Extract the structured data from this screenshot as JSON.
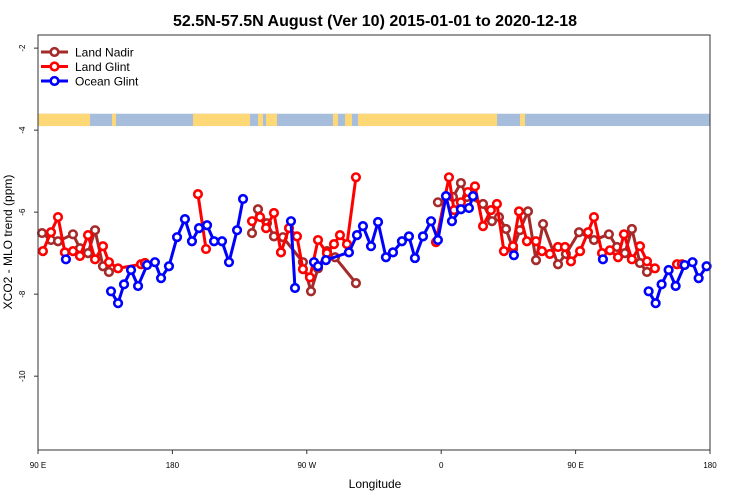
{
  "chart_data": {
    "type": "line",
    "title": "52.5N-57.5N August (Ver 10)   2015-01-01 to 2020-12-18",
    "xlabel": "Longitude",
    "ylabel": "XCO2 - MLO trend (ppm)",
    "xlim": [
      90,
      540
    ],
    "ylim": [
      -11.8,
      -1.68
    ],
    "x_ticks": [
      {
        "value": 90,
        "label": "90 E"
      },
      {
        "value": 180,
        "label": "180"
      },
      {
        "value": 270,
        "label": "90 W"
      },
      {
        "value": 360,
        "label": "0"
      },
      {
        "value": 450,
        "label": "90 E"
      },
      {
        "value": 540,
        "label": "180"
      }
    ],
    "y_ticks": [
      {
        "value": -2,
        "label": "-2"
      },
      {
        "value": -4,
        "label": "-4"
      },
      {
        "value": -6,
        "label": "-6"
      },
      {
        "value": -8,
        "label": "-8"
      },
      {
        "value": -10,
        "label": "-10"
      }
    ],
    "grid": false,
    "legend_position": "top-left",
    "series": [
      {
        "name": "Land Nadir",
        "color": "#a52a2a",
        "segments": [
          [
            [
              92.7,
              -6.51
            ],
            [
              98.7,
              -6.68
            ],
            [
              103.4,
              -6.71
            ],
            [
              113.4,
              -6.54
            ],
            [
              118.1,
              -6.88
            ],
            [
              123.5,
              -7.0
            ],
            [
              128.2,
              -6.44
            ],
            [
              133.5,
              -7.32
            ],
            [
              137.5,
              -7.46
            ]
          ],
          [
            [
              233.3,
              -6.51
            ],
            [
              237.3,
              -5.93
            ],
            [
              243.3,
              -6.27
            ],
            [
              248,
              -6.59
            ],
            [
              254,
              -6.61
            ],
            [
              267.4,
              -7.22
            ],
            [
              272.8,
              -7.93
            ],
            [
              277.5,
              -7.37
            ],
            [
              283.5,
              -6.95
            ],
            [
              288.9,
              -7.1
            ],
            [
              302.9,
              -7.73
            ]
          ],
          [
            [
              357.8,
              -5.76
            ],
            [
              367.9,
              -5.63
            ],
            [
              373.2,
              -5.29
            ],
            [
              377.3,
              -5.63
            ],
            [
              388,
              -5.8
            ],
            [
              394,
              -6.22
            ],
            [
              398.7,
              -6.12
            ],
            [
              403.4,
              -6.41
            ],
            [
              408.1,
              -6.9
            ],
            [
              412.7,
              -6.44
            ],
            [
              418.1,
              -5.98
            ],
            [
              423.5,
              -7.17
            ],
            [
              428.2,
              -6.29
            ],
            [
              438.2,
              -7.27
            ],
            [
              443.5,
              -7.02
            ],
            [
              452.3,
              -6.49
            ],
            [
              462.3,
              -6.68
            ],
            [
              472.3,
              -6.54
            ],
            [
              477.7,
              -6.85
            ],
            [
              483,
              -7.0
            ],
            [
              487.7,
              -6.41
            ],
            [
              493.1,
              -7.24
            ],
            [
              497.8,
              -7.46
            ]
          ]
        ]
      },
      {
        "name": "Land Glint",
        "color": "#ff0000",
        "segments": [
          [
            [
              93.3,
              -6.95
            ],
            [
              98.7,
              -6.49
            ],
            [
              103.4,
              -6.12
            ],
            [
              108,
              -6.98
            ],
            [
              113.4,
              -6.95
            ],
            [
              118.1,
              -7.07
            ],
            [
              123.5,
              -6.56
            ],
            [
              128.2,
              -7.15
            ],
            [
              133.5,
              -6.83
            ],
            [
              137.5,
              -7.22
            ],
            [
              143.6,
              -7.37
            ],
            [
              159,
              -7.27
            ],
            [
              161.6,
              -7.24
            ]
          ],
          [
            [
              197.1,
              -5.56
            ],
            [
              202.5,
              -6.9
            ]
          ],
          [
            [
              233.3,
              -6.22
            ],
            [
              238.7,
              -6.12
            ],
            [
              242.7,
              -6.39
            ],
            [
              248,
              -6.02
            ],
            [
              252.7,
              -6.98
            ],
            [
              258.1,
              -6.39
            ],
            [
              263.4,
              -6.59
            ],
            [
              267.4,
              -7.39
            ],
            [
              272.1,
              -7.59
            ],
            [
              277.5,
              -6.68
            ],
            [
              283.5,
              -7.0
            ],
            [
              288.2,
              -6.78
            ],
            [
              292.2,
              -6.56
            ],
            [
              296.9,
              -6.78
            ],
            [
              302.9,
              -5.15
            ]
          ],
          [
            [
              356.5,
              -6.73
            ],
            [
              365.2,
              -5.15
            ],
            [
              368.6,
              -5.95
            ],
            [
              373.2,
              -5.76
            ],
            [
              377.9,
              -5.51
            ],
            [
              382.6,
              -5.37
            ],
            [
              388,
              -6.34
            ],
            [
              393.3,
              -5.95
            ],
            [
              397.3,
              -5.8
            ],
            [
              402,
              -6.95
            ],
            [
              408.1,
              -6.83
            ],
            [
              412.1,
              -5.98
            ],
            [
              417.4,
              -6.71
            ],
            [
              423.5,
              -6.71
            ],
            [
              427.5,
              -6.95
            ],
            [
              432.8,
              -7.02
            ],
            [
              438.2,
              -6.85
            ],
            [
              442.9,
              -6.85
            ],
            [
              446.9,
              -7.2
            ],
            [
              453,
              -6.95
            ],
            [
              458.3,
              -6.49
            ],
            [
              462.3,
              -6.12
            ],
            [
              467.7,
              -7.0
            ],
            [
              473,
              -6.93
            ],
            [
              478.4,
              -7.1
            ],
            [
              482.4,
              -6.54
            ],
            [
              487.7,
              -7.15
            ],
            [
              493.1,
              -6.83
            ],
            [
              497.8,
              -7.2
            ],
            [
              503.1,
              -7.37
            ]
          ],
          [
            [
              517.9,
              -7.27
            ],
            [
              521.2,
              -7.27
            ]
          ]
        ]
      },
      {
        "name": "Ocean Glint",
        "color": "#0000ff",
        "segments": [
          [
            [
              108.7,
              -7.15
            ]
          ],
          [
            [
              138.9,
              -7.93
            ],
            [
              143.6,
              -8.22
            ],
            [
              147.6,
              -7.76
            ],
            [
              152.3,
              -7.41
            ],
            [
              157,
              -7.8
            ],
            [
              163,
              -7.29
            ],
            [
              168.3,
              -7.22
            ],
            [
              172.4,
              -7.61
            ],
            [
              177.7,
              -7.32
            ],
            [
              183.1,
              -6.61
            ],
            [
              188.4,
              -6.17
            ],
            [
              193.1,
              -6.71
            ],
            [
              197.8,
              -6.39
            ],
            [
              203.2,
              -6.32
            ],
            [
              207.9,
              -6.71
            ],
            [
              213.2,
              -6.71
            ],
            [
              217.9,
              -7.22
            ],
            [
              223.3,
              -6.44
            ],
            [
              227.3,
              -5.68
            ]
          ],
          [
            [
              259.4,
              -6.22
            ],
            [
              262.1,
              -7.85
            ]
          ],
          [
            [
              274.8,
              -7.22
            ],
            [
              277.5,
              -7.32
            ],
            [
              282.8,
              -7.17
            ],
            [
              298.2,
              -6.98
            ],
            [
              303.6,
              -6.56
            ],
            [
              307.6,
              -6.34
            ],
            [
              313,
              -6.83
            ],
            [
              317.7,
              -6.24
            ],
            [
              323,
              -7.1
            ],
            [
              327.7,
              -6.98
            ],
            [
              333.7,
              -6.71
            ],
            [
              338.4,
              -6.59
            ],
            [
              342.4,
              -7.12
            ],
            [
              347.8,
              -6.59
            ],
            [
              353.2,
              -6.22
            ],
            [
              357.8,
              -6.68
            ],
            [
              363.2,
              -5.61
            ],
            [
              367.2,
              -6.22
            ],
            [
              373.2,
              -5.93
            ],
            [
              378.6,
              -5.9
            ],
            [
              381.3,
              -5.61
            ]
          ],
          [
            [
              408.7,
              -7.05
            ]
          ],
          [
            [
              468.3,
              -7.15
            ]
          ],
          [
            [
              498.9,
              -7.93
            ],
            [
              503.6,
              -8.22
            ],
            [
              507.6,
              -7.76
            ],
            [
              512.3,
              -7.41
            ],
            [
              517,
              -7.8
            ],
            [
              523,
              -7.29
            ],
            [
              528.3,
              -7.22
            ],
            [
              532.4,
              -7.61
            ],
            [
              537.7,
              -7.32
            ]
          ]
        ]
      }
    ]
  }
}
